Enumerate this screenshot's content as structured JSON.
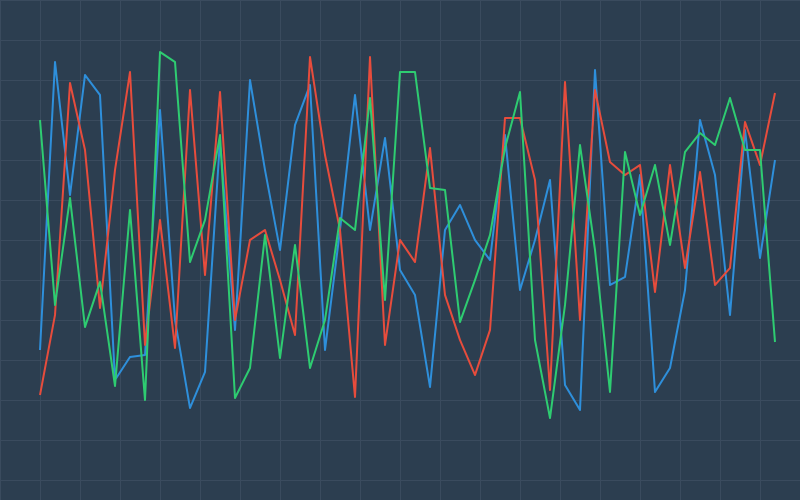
{
  "chart_data": {
    "type": "line",
    "x": [
      0,
      1,
      2,
      3,
      4,
      5,
      6,
      7,
      8,
      9,
      10,
      11,
      12,
      13,
      14,
      15,
      16,
      17,
      18,
      19,
      20,
      21,
      22,
      23,
      24,
      25,
      26,
      27,
      28,
      29,
      30,
      31,
      32,
      33,
      34,
      35,
      36,
      37,
      38,
      39,
      40,
      41,
      42,
      43,
      44,
      45,
      46,
      47,
      48,
      49
    ],
    "xlim": [
      -2.667,
      50.667
    ],
    "ylim": [
      0,
      500
    ],
    "grid": true,
    "background": "#2c3e50",
    "series": [
      {
        "color": "#2e8fdb",
        "values": [
          150,
          438,
          305,
          425,
          405,
          120,
          143,
          145,
          390,
          180,
          92,
          128,
          360,
          170,
          420,
          330,
          250,
          375,
          415,
          150,
          270,
          405,
          270,
          362,
          230,
          205,
          113,
          270,
          295,
          260,
          240,
          365,
          210,
          260,
          320,
          115,
          90,
          430,
          215,
          223,
          325,
          108,
          132,
          210,
          380,
          325,
          185,
          370,
          242,
          340
        ]
      },
      {
        "color": "#e74c3c",
        "values": [
          105,
          185,
          417,
          350,
          192,
          330,
          428,
          155,
          280,
          152,
          410,
          225,
          408,
          180,
          260,
          270,
          220,
          165,
          443,
          345,
          270,
          103,
          443,
          155,
          260,
          238,
          352,
          205,
          160,
          125,
          170,
          382,
          382,
          320,
          110,
          418,
          180,
          410,
          338,
          325,
          335,
          208,
          335,
          232,
          328,
          215,
          232,
          378,
          335,
          407
        ]
      },
      {
        "color": "#2ecc71",
        "values": [
          380,
          195,
          302,
          173,
          218,
          114,
          290,
          100,
          448,
          438,
          238,
          280,
          365,
          102,
          132,
          265,
          142,
          255,
          132,
          180,
          282,
          270,
          402,
          200,
          428,
          428,
          312,
          310,
          178,
          220,
          265,
          352,
          408,
          160,
          82,
          195,
          355,
          250,
          108,
          348,
          285,
          335,
          255,
          348,
          367,
          355,
          402,
          350,
          350,
          158
        ]
      }
    ]
  }
}
